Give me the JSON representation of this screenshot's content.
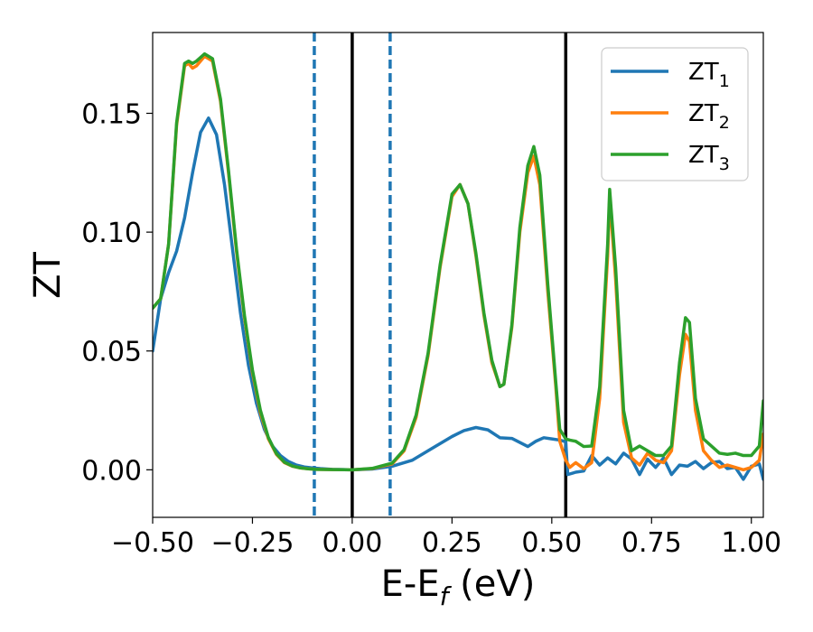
{
  "chart_data": {
    "type": "line",
    "title": "",
    "xlabel": {
      "main": "E-E",
      "sub": "f",
      "suffix": " (eV)"
    },
    "ylabel": "ZT",
    "xlim": [
      -0.5,
      1.03
    ],
    "ylim": [
      -0.02,
      0.184
    ],
    "grid": false,
    "legend_position": "top-right",
    "xticks": [
      -0.5,
      -0.25,
      0.0,
      0.25,
      0.5,
      0.75,
      1.0
    ],
    "xtick_labels": [
      "−0.50",
      "−0.25",
      "0.00",
      "0.25",
      "0.50",
      "0.75",
      "1.00"
    ],
    "yticks": [
      0.0,
      0.05,
      0.1,
      0.15
    ],
    "ytick_labels": [
      "0.00",
      "0.05",
      "0.10",
      "0.15"
    ],
    "vertical_lines": [
      {
        "x": -0.095,
        "style": "dashed",
        "color": "#1f77b4"
      },
      {
        "x": 0.0,
        "style": "solid",
        "color": "#000000"
      },
      {
        "x": 0.095,
        "style": "dashed",
        "color": "#1f77b4"
      },
      {
        "x": 0.535,
        "style": "solid",
        "color": "#000000"
      }
    ],
    "series": [
      {
        "name": "ZT",
        "subscript": "1",
        "color": "#1f77b4",
        "x": [
          -0.5,
          -0.48,
          -0.46,
          -0.44,
          -0.42,
          -0.4,
          -0.38,
          -0.36,
          -0.34,
          -0.32,
          -0.3,
          -0.28,
          -0.26,
          -0.24,
          -0.22,
          -0.2,
          -0.18,
          -0.16,
          -0.14,
          -0.12,
          -0.1,
          -0.08,
          -0.05,
          0.0,
          0.05,
          0.1,
          0.15,
          0.2,
          0.25,
          0.28,
          0.31,
          0.34,
          0.37,
          0.4,
          0.42,
          0.44,
          0.46,
          0.48,
          0.5,
          0.52,
          0.535,
          0.54,
          0.56,
          0.58,
          0.6,
          0.62,
          0.64,
          0.66,
          0.68,
          0.7,
          0.72,
          0.74,
          0.76,
          0.78,
          0.8,
          0.82,
          0.84,
          0.86,
          0.88,
          0.9,
          0.92,
          0.94,
          0.96,
          0.98,
          1.0,
          1.02,
          1.03
        ],
        "y": [
          0.05,
          0.072,
          0.083,
          0.092,
          0.106,
          0.125,
          0.142,
          0.148,
          0.141,
          0.12,
          0.093,
          0.066,
          0.044,
          0.028,
          0.017,
          0.01,
          0.006,
          0.0035,
          0.002,
          0.0012,
          0.0008,
          0.0005,
          0.0002,
          0.0,
          0.0003,
          0.0015,
          0.004,
          0.009,
          0.014,
          0.0165,
          0.0178,
          0.0168,
          0.0135,
          0.0132,
          0.0115,
          0.0098,
          0.012,
          0.0135,
          0.013,
          0.0125,
          0.0118,
          -0.002,
          -0.001,
          -0.0005,
          0.006,
          0.002,
          0.005,
          0.0025,
          0.007,
          0.0045,
          -0.002,
          0.0045,
          0.001,
          0.005,
          -0.002,
          0.002,
          0.0015,
          0.0035,
          0.0005,
          0.003,
          0.0035,
          0.0005,
          0.001,
          -0.004,
          0.0015,
          0.0025,
          -0.004
        ]
      },
      {
        "name": "ZT",
        "subscript": "2",
        "color": "#ff7f0e",
        "x": [
          -0.5,
          -0.48,
          -0.46,
          -0.44,
          -0.42,
          -0.41,
          -0.4,
          -0.39,
          -0.37,
          -0.35,
          -0.33,
          -0.31,
          -0.29,
          -0.27,
          -0.25,
          -0.23,
          -0.21,
          -0.19,
          -0.17,
          -0.15,
          -0.13,
          -0.11,
          -0.09,
          -0.05,
          0.0,
          0.05,
          0.1,
          0.13,
          0.16,
          0.19,
          0.22,
          0.25,
          0.27,
          0.29,
          0.31,
          0.33,
          0.35,
          0.37,
          0.38,
          0.4,
          0.42,
          0.44,
          0.455,
          0.47,
          0.49,
          0.51,
          0.52,
          0.535,
          0.545,
          0.56,
          0.58,
          0.6,
          0.62,
          0.64,
          0.645,
          0.66,
          0.68,
          0.7,
          0.72,
          0.74,
          0.76,
          0.78,
          0.8,
          0.82,
          0.835,
          0.845,
          0.86,
          0.88,
          0.9,
          0.92,
          0.94,
          0.96,
          0.98,
          1.0,
          1.02,
          1.03
        ],
        "y": [
          0.068,
          0.072,
          0.095,
          0.145,
          0.17,
          0.171,
          0.169,
          0.17,
          0.174,
          0.172,
          0.155,
          0.125,
          0.092,
          0.064,
          0.041,
          0.024,
          0.013,
          0.0065,
          0.003,
          0.0015,
          0.0008,
          0.0004,
          0.0002,
          0.0001,
          0.0,
          0.0005,
          0.0025,
          0.008,
          0.022,
          0.048,
          0.085,
          0.115,
          0.12,
          0.112,
          0.09,
          0.065,
          0.045,
          0.035,
          0.036,
          0.06,
          0.1,
          0.125,
          0.132,
          0.12,
          0.075,
          0.035,
          0.012,
          0.004,
          0.001,
          0.003,
          0.0005,
          0.003,
          0.03,
          0.09,
          0.115,
          0.08,
          0.02,
          0.005,
          0.002,
          0.007,
          0.004,
          0.003,
          0.008,
          0.04,
          0.057,
          0.054,
          0.025,
          0.008,
          0.004,
          0.001,
          0.002,
          0.001,
          0.0,
          0.001,
          0.004,
          0.015
        ]
      },
      {
        "name": "ZT",
        "subscript": "3",
        "color": "#2ca02c",
        "x": [
          -0.5,
          -0.48,
          -0.46,
          -0.44,
          -0.42,
          -0.41,
          -0.4,
          -0.39,
          -0.37,
          -0.35,
          -0.33,
          -0.31,
          -0.29,
          -0.27,
          -0.25,
          -0.23,
          -0.21,
          -0.19,
          -0.17,
          -0.15,
          -0.13,
          -0.11,
          -0.09,
          -0.05,
          0.0,
          0.05,
          0.1,
          0.13,
          0.16,
          0.19,
          0.22,
          0.25,
          0.27,
          0.29,
          0.31,
          0.33,
          0.35,
          0.37,
          0.38,
          0.4,
          0.42,
          0.44,
          0.455,
          0.47,
          0.49,
          0.51,
          0.52,
          0.535,
          0.545,
          0.56,
          0.58,
          0.6,
          0.62,
          0.64,
          0.645,
          0.66,
          0.68,
          0.7,
          0.72,
          0.74,
          0.76,
          0.78,
          0.8,
          0.82,
          0.835,
          0.845,
          0.86,
          0.88,
          0.9,
          0.92,
          0.94,
          0.96,
          0.98,
          1.0,
          1.02,
          1.03
        ],
        "y": [
          0.068,
          0.072,
          0.095,
          0.146,
          0.171,
          0.172,
          0.171,
          0.172,
          0.175,
          0.173,
          0.156,
          0.126,
          0.093,
          0.065,
          0.042,
          0.025,
          0.0135,
          0.0068,
          0.0032,
          0.0016,
          0.0008,
          0.0004,
          0.0002,
          0.0001,
          0.0,
          0.0006,
          0.0028,
          0.0085,
          0.023,
          0.049,
          0.086,
          0.116,
          0.12,
          0.112,
          0.091,
          0.066,
          0.046,
          0.035,
          0.036,
          0.061,
          0.102,
          0.128,
          0.136,
          0.124,
          0.078,
          0.037,
          0.017,
          0.013,
          0.0125,
          0.012,
          0.0098,
          0.01,
          0.035,
          0.095,
          0.118,
          0.085,
          0.025,
          0.008,
          0.01,
          0.008,
          0.006,
          0.006,
          0.01,
          0.045,
          0.064,
          0.062,
          0.03,
          0.013,
          0.01,
          0.007,
          0.0065,
          0.007,
          0.006,
          0.006,
          0.01,
          0.029
        ]
      }
    ]
  }
}
